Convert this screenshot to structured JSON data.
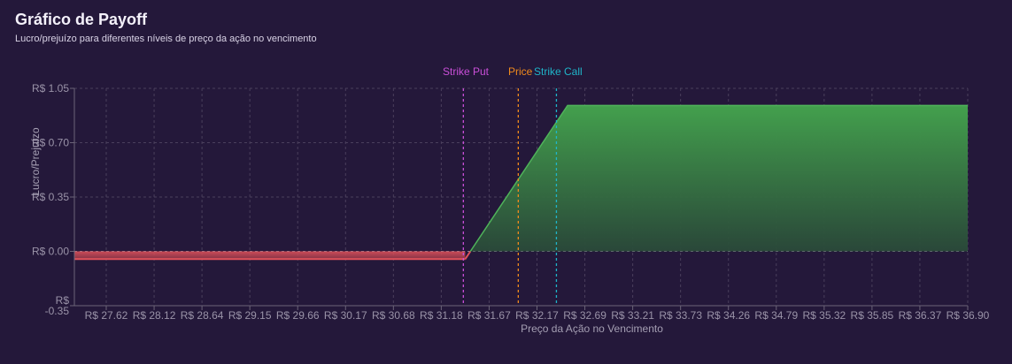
{
  "page": {
    "title": "Gráfico de Payoff",
    "subtitle": "Lucro/prejuízo para diferentes níveis de preço da ação no vencimento"
  },
  "colors": {
    "background": "#24183a",
    "profit": "#3f9d4c",
    "loss": "#e0525b",
    "strike_put": "#c94fd8",
    "price": "#f08a1c",
    "strike_call": "#1fb5c9",
    "grid": "#4a3f5c"
  },
  "chart_data": {
    "type": "area",
    "title": "",
    "xlabel": "Preço da Ação no Vencimento",
    "ylabel": "Lucro/Prejuízo",
    "x_ticks": [
      "R$ 27.62",
      "R$ 28.12",
      "R$ 28.64",
      "R$ 29.15",
      "R$ 29.66",
      "R$ 30.17",
      "R$ 30.68",
      "R$ 31.18",
      "R$ 31.67",
      "R$ 32.17",
      "R$ 32.69",
      "R$ 33.21",
      "R$ 33.73",
      "R$ 34.26",
      "R$ 34.79",
      "R$ 35.32",
      "R$ 35.85",
      "R$ 36.37",
      "R$ 36.90"
    ],
    "y_ticks": [
      "R$ 1.05",
      "R$ 0.70",
      "R$ 0.35",
      "R$ 0.00",
      "R$ -0.35"
    ],
    "xlim": [
      27.3,
      36.9
    ],
    "ylim": [
      -0.35,
      1.05
    ],
    "grid": true,
    "legend_position": "top-center",
    "series": [
      {
        "x": [
          27.3,
          31.5,
          32.6,
          36.9
        ],
        "y": [
          -0.05,
          -0.05,
          0.94,
          0.94
        ]
      }
    ],
    "reference_lines": [
      {
        "label": "Strike Put",
        "x": 31.48,
        "color_key": "strike_put"
      },
      {
        "label": "Price",
        "x": 32.07,
        "color_key": "price"
      },
      {
        "label": "Strike Call",
        "x": 32.48,
        "color_key": "strike_call"
      }
    ],
    "zero_line": 0
  }
}
